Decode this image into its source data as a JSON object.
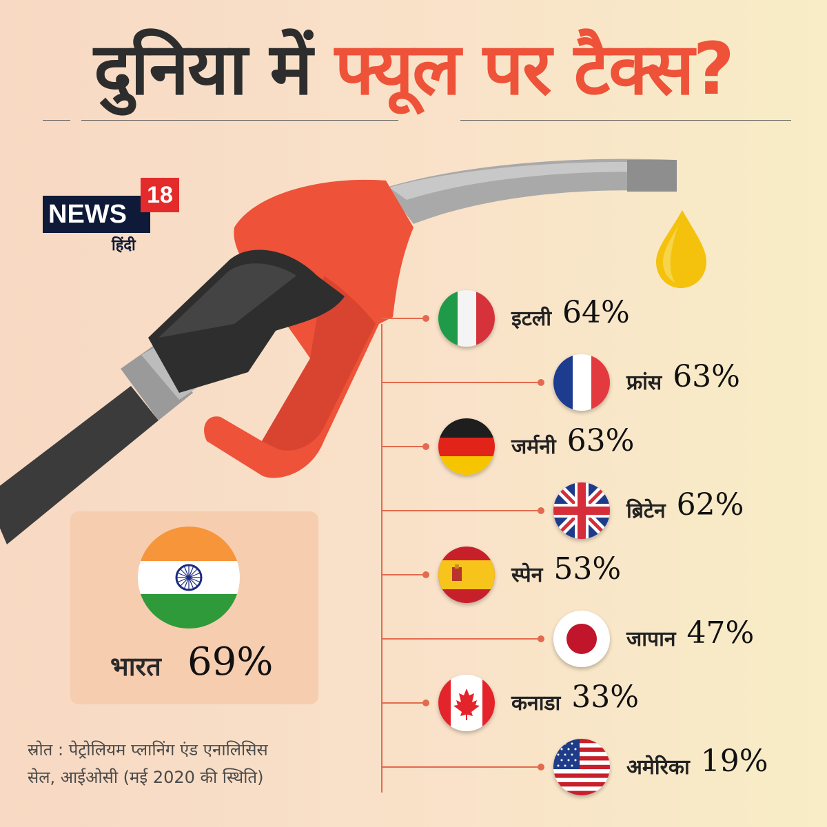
{
  "title": {
    "part1": "दुनिया में",
    "part2": "फ्यूल पर टैक्स?"
  },
  "logo": {
    "news": "NEWS",
    "number": "18",
    "subtitle": "हिंदी"
  },
  "highlight": {
    "country": "भारत",
    "value": "69%",
    "flag_icon": "india-flag"
  },
  "countries": [
    {
      "name": "इटली",
      "value": "64%",
      "flag_icon": "italy-flag"
    },
    {
      "name": "फ्रांस",
      "value": "63%",
      "flag_icon": "france-flag"
    },
    {
      "name": "जर्मनी",
      "value": "63%",
      "flag_icon": "germany-flag"
    },
    {
      "name": "ब्रिटेन",
      "value": "62%",
      "flag_icon": "uk-flag"
    },
    {
      "name": "स्पेन",
      "value": "53%",
      "flag_icon": "spain-flag"
    },
    {
      "name": "जापान",
      "value": "47%",
      "flag_icon": "japan-flag"
    },
    {
      "name": "कनाडा",
      "value": "33%",
      "flag_icon": "canada-flag"
    },
    {
      "name": "अमेरिका",
      "value": "19%",
      "flag_icon": "usa-flag"
    }
  ],
  "source": {
    "line1": "स्रोत : पेट्रोलियम प्लानिंग एंड एनालिसिस",
    "line2": "सेल, आईओसी (मई 2020 की स्थिति)"
  },
  "colors": {
    "accent_red": "#ee5239",
    "dark_text": "#2d2d2d",
    "fuel_drop": "#f4c20d",
    "logo_navy": "#0e1a38"
  }
}
